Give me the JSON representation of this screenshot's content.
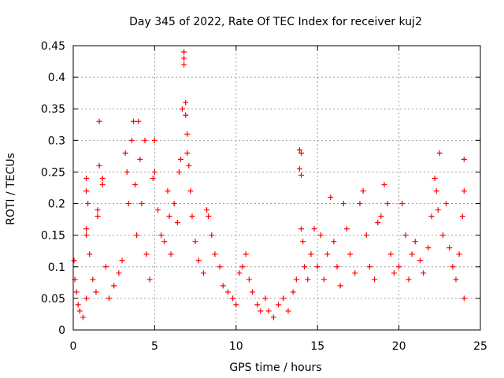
{
  "chart_data": {
    "type": "scatter",
    "title": "Day 345 of 2022, Rate Of TEC Index for receiver kuj2",
    "xlabel": "GPS time / hours",
    "ylabel": "ROTI / TECUs",
    "xlim": [
      0,
      25
    ],
    "ylim": [
      0,
      0.45
    ],
    "x_ticks": [
      "0",
      "5",
      "10",
      "15",
      "20",
      "25"
    ],
    "y_ticks": [
      "0",
      "0.05",
      "0.1",
      "0.15",
      "0.2",
      "0.25",
      "0.3",
      "0.35",
      "0.4",
      "0.45"
    ],
    "grid": true,
    "marker": "+",
    "marker_color": "#ff0000",
    "series": [
      {
        "name": "ROTI",
        "points": [
          [
            0.05,
            0.11
          ],
          [
            0.1,
            0.08
          ],
          [
            0.2,
            0.06
          ],
          [
            0.3,
            0.04
          ],
          [
            0.4,
            0.03
          ],
          [
            0.6,
            0.02
          ],
          [
            0.8,
            0.05
          ],
          [
            0.8,
            0.15
          ],
          [
            0.8,
            0.16
          ],
          [
            0.8,
            0.24
          ],
          [
            0.8,
            0.22
          ],
          [
            0.9,
            0.2
          ],
          [
            1.0,
            0.12
          ],
          [
            1.2,
            0.08
          ],
          [
            1.4,
            0.06
          ],
          [
            1.5,
            0.19
          ],
          [
            1.5,
            0.18
          ],
          [
            1.6,
            0.26
          ],
          [
            1.6,
            0.33
          ],
          [
            1.8,
            0.24
          ],
          [
            1.8,
            0.23
          ],
          [
            2.0,
            0.1
          ],
          [
            2.2,
            0.05
          ],
          [
            2.5,
            0.07
          ],
          [
            2.8,
            0.09
          ],
          [
            3.0,
            0.11
          ],
          [
            3.2,
            0.28
          ],
          [
            3.3,
            0.25
          ],
          [
            3.4,
            0.2
          ],
          [
            3.6,
            0.3
          ],
          [
            3.7,
            0.33
          ],
          [
            3.8,
            0.23
          ],
          [
            3.9,
            0.15
          ],
          [
            4.0,
            0.33
          ],
          [
            4.1,
            0.27
          ],
          [
            4.2,
            0.2
          ],
          [
            4.4,
            0.3
          ],
          [
            4.5,
            0.12
          ],
          [
            4.7,
            0.08
          ],
          [
            4.9,
            0.24
          ],
          [
            5.0,
            0.3
          ],
          [
            5.0,
            0.25
          ],
          [
            5.2,
            0.19
          ],
          [
            5.4,
            0.15
          ],
          [
            5.6,
            0.14
          ],
          [
            5.8,
            0.22
          ],
          [
            5.9,
            0.18
          ],
          [
            6.0,
            0.12
          ],
          [
            6.2,
            0.2
          ],
          [
            6.4,
            0.17
          ],
          [
            6.5,
            0.25
          ],
          [
            6.6,
            0.27
          ],
          [
            6.7,
            0.35
          ],
          [
            6.8,
            0.44
          ],
          [
            6.8,
            0.43
          ],
          [
            6.8,
            0.42
          ],
          [
            6.9,
            0.36
          ],
          [
            6.9,
            0.34
          ],
          [
            7.0,
            0.31
          ],
          [
            7.0,
            0.28
          ],
          [
            7.1,
            0.26
          ],
          [
            7.2,
            0.22
          ],
          [
            7.3,
            0.18
          ],
          [
            7.5,
            0.14
          ],
          [
            7.7,
            0.11
          ],
          [
            8.0,
            0.09
          ],
          [
            8.2,
            0.19
          ],
          [
            8.3,
            0.18
          ],
          [
            8.5,
            0.15
          ],
          [
            8.7,
            0.12
          ],
          [
            9.0,
            0.1
          ],
          [
            9.2,
            0.07
          ],
          [
            9.5,
            0.06
          ],
          [
            9.8,
            0.05
          ],
          [
            10.0,
            0.04
          ],
          [
            10.2,
            0.09
          ],
          [
            10.4,
            0.1
          ],
          [
            10.6,
            0.12
          ],
          [
            10.8,
            0.08
          ],
          [
            11.0,
            0.06
          ],
          [
            11.3,
            0.04
          ],
          [
            11.5,
            0.03
          ],
          [
            11.8,
            0.05
          ],
          [
            12.0,
            0.03
          ],
          [
            12.3,
            0.02
          ],
          [
            12.6,
            0.04
          ],
          [
            12.9,
            0.05
          ],
          [
            13.2,
            0.03
          ],
          [
            13.5,
            0.06
          ],
          [
            13.7,
            0.08
          ],
          [
            13.9,
            0.285
          ],
          [
            14.0,
            0.28
          ],
          [
            13.9,
            0.255
          ],
          [
            14.0,
            0.245
          ],
          [
            14.0,
            0.16
          ],
          [
            14.1,
            0.14
          ],
          [
            14.2,
            0.1
          ],
          [
            14.4,
            0.08
          ],
          [
            14.6,
            0.12
          ],
          [
            14.8,
            0.16
          ],
          [
            15.0,
            0.1
          ],
          [
            15.2,
            0.15
          ],
          [
            15.4,
            0.08
          ],
          [
            15.6,
            0.12
          ],
          [
            15.8,
            0.21
          ],
          [
            16.0,
            0.14
          ],
          [
            16.2,
            0.1
          ],
          [
            16.4,
            0.07
          ],
          [
            16.6,
            0.2
          ],
          [
            16.8,
            0.16
          ],
          [
            17.0,
            0.12
          ],
          [
            17.3,
            0.09
          ],
          [
            17.6,
            0.2
          ],
          [
            17.8,
            0.22
          ],
          [
            18.0,
            0.15
          ],
          [
            18.2,
            0.1
          ],
          [
            18.5,
            0.08
          ],
          [
            18.7,
            0.17
          ],
          [
            18.9,
            0.18
          ],
          [
            19.1,
            0.23
          ],
          [
            19.3,
            0.2
          ],
          [
            19.5,
            0.12
          ],
          [
            19.7,
            0.09
          ],
          [
            20.0,
            0.1
          ],
          [
            20.2,
            0.2
          ],
          [
            20.4,
            0.15
          ],
          [
            20.6,
            0.08
          ],
          [
            20.8,
            0.12
          ],
          [
            21.0,
            0.14
          ],
          [
            21.3,
            0.11
          ],
          [
            21.5,
            0.09
          ],
          [
            21.8,
            0.13
          ],
          [
            22.0,
            0.18
          ],
          [
            22.2,
            0.24
          ],
          [
            22.3,
            0.22
          ],
          [
            22.4,
            0.19
          ],
          [
            22.5,
            0.28
          ],
          [
            22.7,
            0.15
          ],
          [
            22.9,
            0.2
          ],
          [
            23.1,
            0.13
          ],
          [
            23.3,
            0.1
          ],
          [
            23.5,
            0.08
          ],
          [
            23.7,
            0.12
          ],
          [
            23.9,
            0.18
          ],
          [
            24.0,
            0.27
          ],
          [
            24.0,
            0.22
          ],
          [
            24.0,
            0.05
          ]
        ]
      }
    ]
  }
}
